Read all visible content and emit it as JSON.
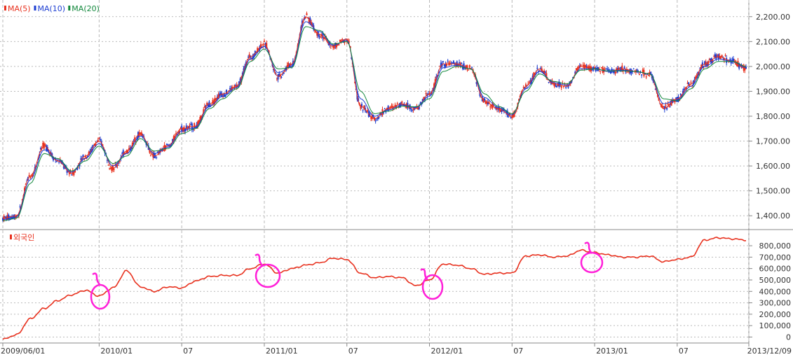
{
  "colors": {
    "ma5": "#e8311e",
    "ma10": "#1e3fd2",
    "ma20": "#12883c",
    "foreign": "#e8311e",
    "annotation": "#ff1fd8",
    "grid": "#b9b9b9",
    "up_candle": "#e8311e",
    "down_candle": "#1e3fd2"
  },
  "chart_data": [
    {
      "type": "line",
      "title": "",
      "legend": [
        {
          "name": "MA(5)",
          "color": "#e8311e"
        },
        {
          "name": "MA(10)",
          "color": "#1e3fd2"
        },
        {
          "name": "MA(20)",
          "color": "#12883c"
        }
      ],
      "legend_placement": "top-left",
      "x_ticks": [
        "2009/06/01",
        "2010/01",
        "07",
        "2011/01",
        "07",
        "2012/01",
        "07",
        "2013/01",
        "07",
        "2013/12/09"
      ],
      "y_ticks": [
        "1,400.00",
        "1,500.00",
        "1,600.00",
        "1,700.00",
        "1,800.00",
        "1,900.00",
        "2,000.00",
        "2,100.00",
        "2,200.00"
      ],
      "ylim": [
        1350,
        2250
      ],
      "grid": true,
      "x": [
        "2009/06",
        "2009/07",
        "2009/08",
        "2009/09",
        "2009/10",
        "2009/11",
        "2009/12",
        "2010/01",
        "2010/02",
        "2010/03",
        "2010/04",
        "2010/05",
        "2010/06",
        "2010/07",
        "2010/08",
        "2010/09",
        "2010/10",
        "2010/11",
        "2010/12",
        "2011/01",
        "2011/02",
        "2011/03",
        "2011/04",
        "2011/05",
        "2011/06",
        "2011/07",
        "2011/08",
        "2011/09",
        "2011/10",
        "2011/11",
        "2011/12",
        "2012/01",
        "2012/02",
        "2012/03",
        "2012/04",
        "2012/05",
        "2012/06",
        "2012/07",
        "2012/08",
        "2012/09",
        "2012/10",
        "2012/11",
        "2012/12",
        "2013/01",
        "2013/02",
        "2013/03",
        "2013/04",
        "2013/05",
        "2013/06",
        "2013/07",
        "2013/08",
        "2013/09",
        "2013/10",
        "2013/11",
        "2013/12"
      ],
      "series": [
        {
          "name": "MA(5)",
          "values": [
            1390,
            1400,
            1560,
            1680,
            1620,
            1570,
            1640,
            1700,
            1590,
            1660,
            1730,
            1640,
            1680,
            1750,
            1760,
            1850,
            1890,
            1920,
            2040,
            2090,
            1960,
            2010,
            2200,
            2130,
            2080,
            2110,
            1840,
            1790,
            1830,
            1850,
            1830,
            1890,
            2010,
            2010,
            1990,
            1860,
            1830,
            1800,
            1920,
            1990,
            1930,
            1920,
            2000,
            1990,
            1980,
            1990,
            1980,
            1970,
            1830,
            1870,
            1930,
            2010,
            2040,
            2020,
            1990
          ]
        },
        {
          "name": "MA(10)",
          "values": [
            1385,
            1395,
            1545,
            1665,
            1625,
            1575,
            1630,
            1690,
            1600,
            1650,
            1720,
            1650,
            1675,
            1740,
            1755,
            1840,
            1880,
            1915,
            2030,
            2080,
            1975,
            2000,
            2180,
            2140,
            2085,
            2105,
            1870,
            1800,
            1825,
            1845,
            1835,
            1880,
            1995,
            2005,
            1990,
            1875,
            1835,
            1805,
            1910,
            1980,
            1935,
            1925,
            1990,
            1990,
            1980,
            1985,
            1980,
            1970,
            1850,
            1865,
            1920,
            2000,
            2030,
            2020,
            1995
          ]
        },
        {
          "name": "MA(20)",
          "values": [
            1380,
            1390,
            1530,
            1650,
            1630,
            1580,
            1620,
            1680,
            1610,
            1640,
            1710,
            1660,
            1670,
            1730,
            1750,
            1830,
            1870,
            1910,
            2020,
            2070,
            1990,
            1995,
            2160,
            2145,
            2090,
            2100,
            1900,
            1810,
            1820,
            1840,
            1838,
            1870,
            1980,
            2000,
            1990,
            1890,
            1840,
            1810,
            1900,
            1970,
            1940,
            1930,
            1985,
            1990,
            1982,
            1982,
            1980,
            1970,
            1870,
            1862,
            1910,
            1990,
            2020,
            2020,
            2000
          ]
        }
      ]
    },
    {
      "type": "line",
      "title": "",
      "legend": [
        {
          "name": "외국인",
          "color": "#e8311e"
        }
      ],
      "legend_placement": "top-left",
      "y_ticks": [
        "0",
        "100,000",
        "200,000",
        "300,000",
        "400,000",
        "500,000",
        "600,000",
        "700,000",
        "800,000"
      ],
      "ylim": [
        -40000,
        880000
      ],
      "grid": true,
      "x": [
        "2009/06",
        "2009/07",
        "2009/08",
        "2009/09",
        "2009/10",
        "2009/11",
        "2009/12",
        "2010/01",
        "2010/02",
        "2010/03",
        "2010/04",
        "2010/05",
        "2010/06",
        "2010/07",
        "2010/08",
        "2010/09",
        "2010/10",
        "2010/11",
        "2010/12",
        "2011/01",
        "2011/02",
        "2011/03",
        "2011/04",
        "2011/05",
        "2011/06",
        "2011/07",
        "2011/08",
        "2011/09",
        "2011/10",
        "2011/11",
        "2011/12",
        "2012/01",
        "2012/02",
        "2012/03",
        "2012/04",
        "2012/05",
        "2012/06",
        "2012/07",
        "2012/08",
        "2012/09",
        "2012/10",
        "2012/11",
        "2012/12",
        "2013/01",
        "2013/02",
        "2013/03",
        "2013/04",
        "2013/05",
        "2013/06",
        "2013/07",
        "2013/08",
        "2013/09",
        "2013/10",
        "2013/11",
        "2013/12"
      ],
      "series": [
        {
          "name": "외국인",
          "values": [
            -20000,
            20000,
            160000,
            250000,
            320000,
            370000,
            410000,
            360000,
            430000,
            580000,
            440000,
            400000,
            440000,
            430000,
            490000,
            530000,
            540000,
            540000,
            600000,
            640000,
            560000,
            600000,
            630000,
            650000,
            690000,
            680000,
            560000,
            520000,
            530000,
            520000,
            450000,
            500000,
            640000,
            630000,
            600000,
            550000,
            560000,
            560000,
            710000,
            720000,
            700000,
            710000,
            760000,
            740000,
            720000,
            700000,
            700000,
            710000,
            660000,
            680000,
            700000,
            850000,
            870000,
            860000,
            850000
          ]
        }
      ]
    }
  ]
}
